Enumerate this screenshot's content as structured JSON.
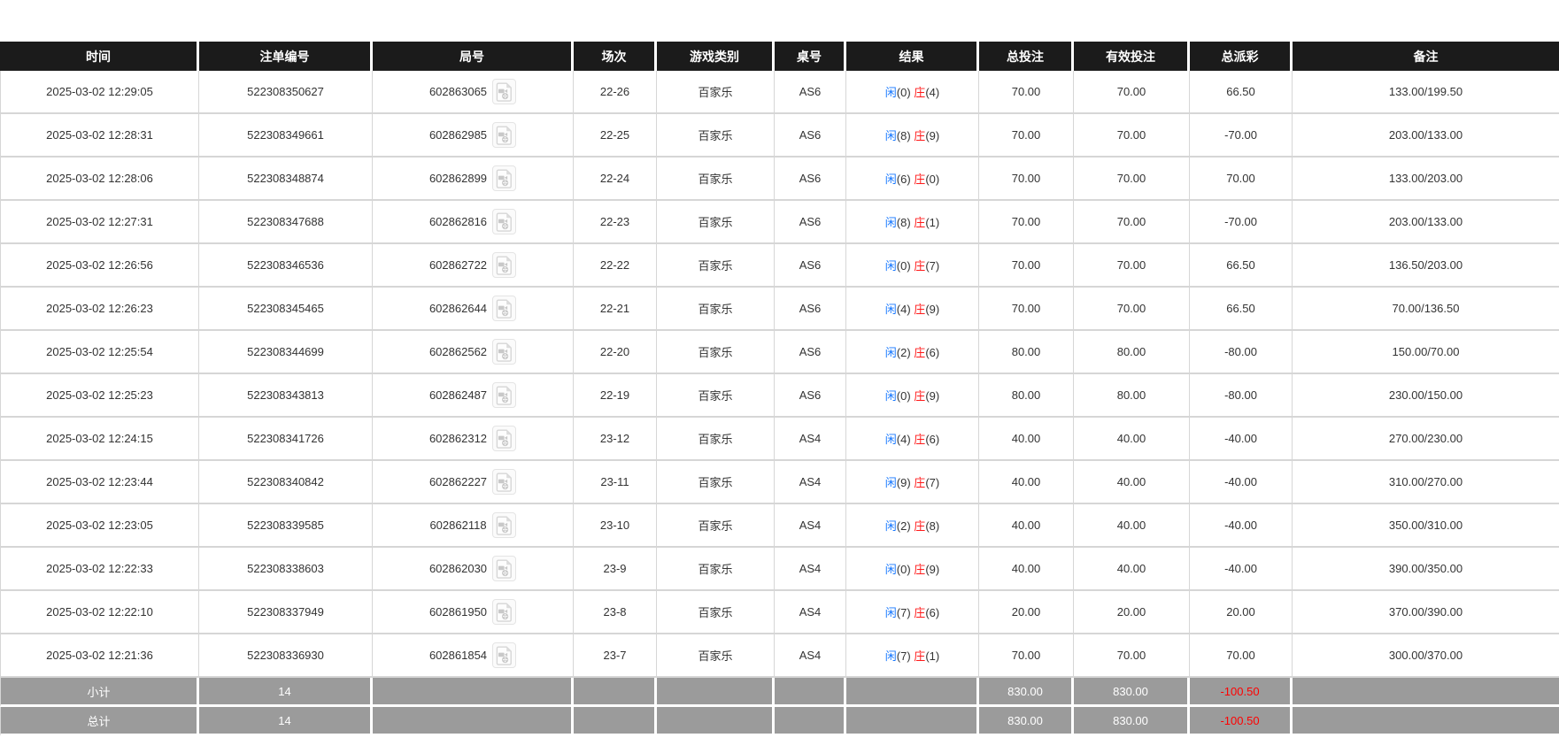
{
  "table": {
    "headers": [
      {
        "key": "time",
        "label": "时间"
      },
      {
        "key": "bet_no",
        "label": "注单编号"
      },
      {
        "key": "round_no",
        "label": "局号"
      },
      {
        "key": "session",
        "label": "场次"
      },
      {
        "key": "game_type",
        "label": "游戏类别"
      },
      {
        "key": "table_no",
        "label": "桌号"
      },
      {
        "key": "result",
        "label": "结果"
      },
      {
        "key": "total_bet",
        "label": "总投注"
      },
      {
        "key": "valid_bet",
        "label": "有效投注"
      },
      {
        "key": "payout",
        "label": "总派彩"
      },
      {
        "key": "remark",
        "label": "备注"
      }
    ],
    "result_labels": {
      "player": "闲",
      "banker": "庄"
    },
    "icons": {
      "round_replay": "video-replay-icon"
    },
    "rows": [
      {
        "time": "2025-03-02 12:29:05",
        "bet_no": "522308350627",
        "round_no": "602863065",
        "session": "22-26",
        "game_type": "百家乐",
        "table_no": "AS6",
        "result": {
          "player": 0,
          "banker": 4
        },
        "total_bet": "70.00",
        "valid_bet": "70.00",
        "payout": "66.50",
        "remark": "133.00/199.50"
      },
      {
        "time": "2025-03-02 12:28:31",
        "bet_no": "522308349661",
        "round_no": "602862985",
        "session": "22-25",
        "game_type": "百家乐",
        "table_no": "AS6",
        "result": {
          "player": 8,
          "banker": 9
        },
        "total_bet": "70.00",
        "valid_bet": "70.00",
        "payout": "-70.00",
        "remark": "203.00/133.00"
      },
      {
        "time": "2025-03-02 12:28:06",
        "bet_no": "522308348874",
        "round_no": "602862899",
        "session": "22-24",
        "game_type": "百家乐",
        "table_no": "AS6",
        "result": {
          "player": 6,
          "banker": 0
        },
        "total_bet": "70.00",
        "valid_bet": "70.00",
        "payout": "70.00",
        "remark": "133.00/203.00"
      },
      {
        "time": "2025-03-02 12:27:31",
        "bet_no": "522308347688",
        "round_no": "602862816",
        "session": "22-23",
        "game_type": "百家乐",
        "table_no": "AS6",
        "result": {
          "player": 8,
          "banker": 1
        },
        "total_bet": "70.00",
        "valid_bet": "70.00",
        "payout": "-70.00",
        "remark": "203.00/133.00"
      },
      {
        "time": "2025-03-02 12:26:56",
        "bet_no": "522308346536",
        "round_no": "602862722",
        "session": "22-22",
        "game_type": "百家乐",
        "table_no": "AS6",
        "result": {
          "player": 0,
          "banker": 7
        },
        "total_bet": "70.00",
        "valid_bet": "70.00",
        "payout": "66.50",
        "remark": "136.50/203.00"
      },
      {
        "time": "2025-03-02 12:26:23",
        "bet_no": "522308345465",
        "round_no": "602862644",
        "session": "22-21",
        "game_type": "百家乐",
        "table_no": "AS6",
        "result": {
          "player": 4,
          "banker": 9
        },
        "total_bet": "70.00",
        "valid_bet": "70.00",
        "payout": "66.50",
        "remark": "70.00/136.50"
      },
      {
        "time": "2025-03-02 12:25:54",
        "bet_no": "522308344699",
        "round_no": "602862562",
        "session": "22-20",
        "game_type": "百家乐",
        "table_no": "AS6",
        "result": {
          "player": 2,
          "banker": 6
        },
        "total_bet": "80.00",
        "valid_bet": "80.00",
        "payout": "-80.00",
        "remark": "150.00/70.00"
      },
      {
        "time": "2025-03-02 12:25:23",
        "bet_no": "522308343813",
        "round_no": "602862487",
        "session": "22-19",
        "game_type": "百家乐",
        "table_no": "AS6",
        "result": {
          "player": 0,
          "banker": 9
        },
        "total_bet": "80.00",
        "valid_bet": "80.00",
        "payout": "-80.00",
        "remark": "230.00/150.00"
      },
      {
        "time": "2025-03-02 12:24:15",
        "bet_no": "522308341726",
        "round_no": "602862312",
        "session": "23-12",
        "game_type": "百家乐",
        "table_no": "AS4",
        "result": {
          "player": 4,
          "banker": 6
        },
        "total_bet": "40.00",
        "valid_bet": "40.00",
        "payout": "-40.00",
        "remark": "270.00/230.00"
      },
      {
        "time": "2025-03-02 12:23:44",
        "bet_no": "522308340842",
        "round_no": "602862227",
        "session": "23-11",
        "game_type": "百家乐",
        "table_no": "AS4",
        "result": {
          "player": 9,
          "banker": 7
        },
        "total_bet": "40.00",
        "valid_bet": "40.00",
        "payout": "-40.00",
        "remark": "310.00/270.00"
      },
      {
        "time": "2025-03-02 12:23:05",
        "bet_no": "522308339585",
        "round_no": "602862118",
        "session": "23-10",
        "game_type": "百家乐",
        "table_no": "AS4",
        "result": {
          "player": 2,
          "banker": 8
        },
        "total_bet": "40.00",
        "valid_bet": "40.00",
        "payout": "-40.00",
        "remark": "350.00/310.00"
      },
      {
        "time": "2025-03-02 12:22:33",
        "bet_no": "522308338603",
        "round_no": "602862030",
        "session": "23-9",
        "game_type": "百家乐",
        "table_no": "AS4",
        "result": {
          "player": 0,
          "banker": 9
        },
        "total_bet": "40.00",
        "valid_bet": "40.00",
        "payout": "-40.00",
        "remark": "390.00/350.00"
      },
      {
        "time": "2025-03-02 12:22:10",
        "bet_no": "522308337949",
        "round_no": "602861950",
        "session": "23-8",
        "game_type": "百家乐",
        "table_no": "AS4",
        "result": {
          "player": 7,
          "banker": 6
        },
        "total_bet": "20.00",
        "valid_bet": "20.00",
        "payout": "20.00",
        "remark": "370.00/390.00"
      },
      {
        "time": "2025-03-02 12:21:36",
        "bet_no": "522308336930",
        "round_no": "602861854",
        "session": "23-7",
        "game_type": "百家乐",
        "table_no": "AS4",
        "result": {
          "player": 7,
          "banker": 1
        },
        "total_bet": "70.00",
        "valid_bet": "70.00",
        "payout": "70.00",
        "remark": "300.00/370.00"
      }
    ],
    "summary_rows": [
      {
        "key": "subtotal",
        "label": "小计",
        "count": "14",
        "total_bet": "830.00",
        "valid_bet": "830.00",
        "payout": "-100.50"
      },
      {
        "key": "total",
        "label": "总计",
        "count": "14",
        "total_bet": "830.00",
        "valid_bet": "830.00",
        "payout": "-100.50"
      }
    ]
  },
  "colors": {
    "header_bg": "#1b1b1b",
    "grid_line": "#d6d6d6",
    "summary_bg": "#9b9b9b",
    "accent_blue": "#1677ff",
    "accent_red": "#ff0000"
  }
}
